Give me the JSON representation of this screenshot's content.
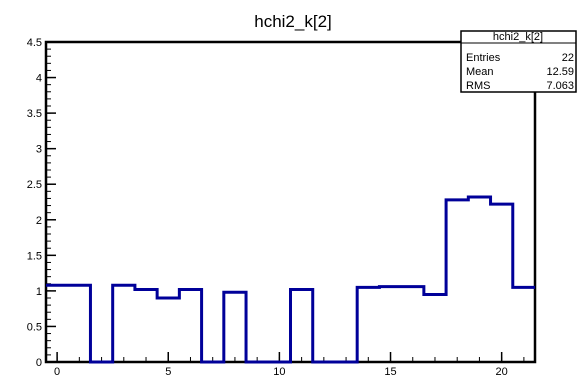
{
  "chart_data": {
    "type": "bar",
    "style": "step-histogram",
    "title": "hchi2_k[2]",
    "xlabel": "",
    "ylabel": "",
    "xlim": [
      -0.5,
      21.5
    ],
    "ylim": [
      0,
      4.5
    ],
    "bin_width": 1,
    "bin_centers": [
      0,
      1,
      2,
      3,
      4,
      5,
      6,
      7,
      8,
      9,
      10,
      11,
      12,
      13,
      14,
      15,
      16,
      17,
      18,
      19,
      20,
      21
    ],
    "values": [
      1.08,
      1.08,
      0,
      1.08,
      1.02,
      0.9,
      1.02,
      0,
      0.98,
      0,
      0,
      1.02,
      0,
      0,
      1.05,
      1.06,
      1.06,
      0.95,
      2.28,
      2.32,
      2.22,
      1.05
    ],
    "x_ticks": [
      {
        "value": 0,
        "label": "0"
      },
      {
        "value": 5,
        "label": "5"
      },
      {
        "value": 10,
        "label": "10"
      },
      {
        "value": 15,
        "label": "15"
      },
      {
        "value": 20,
        "label": "20"
      }
    ],
    "y_ticks": [
      {
        "value": 0,
        "label": "0"
      },
      {
        "value": 0.5,
        "label": "0.5"
      },
      {
        "value": 1,
        "label": "1"
      },
      {
        "value": 1.5,
        "label": "1.5"
      },
      {
        "value": 2,
        "label": "2"
      },
      {
        "value": 2.5,
        "label": "2.5"
      },
      {
        "value": 3,
        "label": "3"
      },
      {
        "value": 3.5,
        "label": "3.5"
      },
      {
        "value": 4,
        "label": "4"
      },
      {
        "value": 4.5,
        "label": "4.5"
      }
    ],
    "line_color": "#000099",
    "grid": false,
    "stats_box": {
      "title": "hchi2_k[2]",
      "rows": [
        {
          "label": "Entries",
          "value": "22"
        },
        {
          "label": "Mean",
          "value": "12.59"
        },
        {
          "label": "RMS",
          "value": "7.063"
        }
      ],
      "placement": "top-right"
    }
  }
}
